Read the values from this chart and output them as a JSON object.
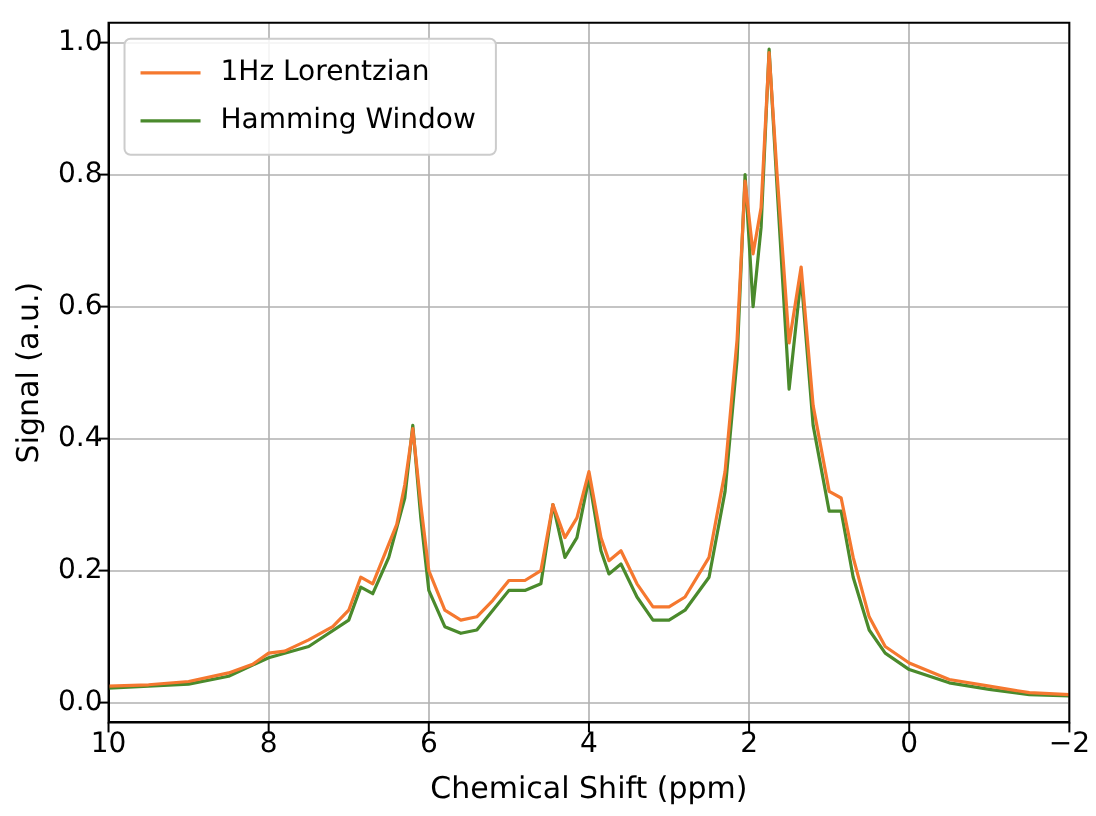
{
  "chart_data": {
    "type": "line",
    "xlabel": "Chemical Shift (ppm)",
    "ylabel": "Signal (a.u.)",
    "xlim": [
      10,
      -2
    ],
    "ylim": [
      -0.03,
      1.03
    ],
    "xticks": [
      10,
      8,
      6,
      4,
      2,
      0,
      {
        "value": -2,
        "label": "−2"
      }
    ],
    "yticks": [
      {
        "value": 0,
        "label": "0.0"
      },
      {
        "value": 0.2,
        "label": "0.2"
      },
      {
        "value": 0.4,
        "label": "0.4"
      },
      {
        "value": 0.6,
        "label": "0.6"
      },
      {
        "value": 0.8,
        "label": "0.8"
      },
      {
        "value": 1,
        "label": "1.0"
      }
    ],
    "grid": true,
    "legend": "top left",
    "marker": "none",
    "line_style": "solid",
    "series": [
      {
        "name": "1Hz Lorentzian",
        "color": "#f5782f",
        "x": [
          10,
          9.5,
          9,
          8.5,
          8.2,
          8,
          7.8,
          7.5,
          7.2,
          7,
          6.85,
          6.7,
          6.5,
          6.4,
          6.3,
          6.2,
          6.1,
          6,
          5.8,
          5.6,
          5.4,
          5.2,
          5,
          4.8,
          4.6,
          4.45,
          4.3,
          4.15,
          4,
          3.85,
          3.75,
          3.6,
          3.4,
          3.2,
          3,
          2.8,
          2.5,
          2.3,
          2.15,
          2.05,
          1.95,
          1.85,
          1.75,
          1.65,
          1.5,
          1.35,
          1.2,
          1,
          0.85,
          0.7,
          0.5,
          0.3,
          0,
          -0.5,
          -1,
          -1.5,
          -2
        ],
        "values": [
          0.025,
          0.027,
          0.032,
          0.045,
          0.058,
          0.075,
          0.078,
          0.095,
          0.115,
          0.14,
          0.19,
          0.18,
          0.24,
          0.27,
          0.33,
          0.415,
          0.3,
          0.2,
          0.14,
          0.125,
          0.13,
          0.155,
          0.185,
          0.185,
          0.2,
          0.3,
          0.25,
          0.28,
          0.35,
          0.25,
          0.215,
          0.23,
          0.18,
          0.145,
          0.145,
          0.16,
          0.22,
          0.35,
          0.55,
          0.79,
          0.68,
          0.75,
          0.985,
          0.8,
          0.545,
          0.66,
          0.45,
          0.32,
          0.31,
          0.22,
          0.13,
          0.085,
          0.06,
          0.035,
          0.025,
          0.015,
          0.012
        ]
      },
      {
        "name": "Hamming Window",
        "color": "#4a8a2c",
        "x": [
          10,
          9,
          8.5,
          8,
          7.5,
          7,
          6.85,
          6.7,
          6.5,
          6.3,
          6.2,
          6.1,
          6,
          5.8,
          5.6,
          5.4,
          5.2,
          5,
          4.8,
          4.6,
          4.45,
          4.3,
          4.15,
          4,
          3.85,
          3.75,
          3.6,
          3.4,
          3.2,
          3,
          2.8,
          2.5,
          2.3,
          2.15,
          2.05,
          1.95,
          1.85,
          1.75,
          1.65,
          1.5,
          1.35,
          1.2,
          1,
          0.85,
          0.7,
          0.5,
          0.3,
          0,
          -0.5,
          -1,
          -1.5,
          -2
        ],
        "values": [
          0.022,
          0.028,
          0.04,
          0.068,
          0.085,
          0.125,
          0.175,
          0.165,
          0.22,
          0.31,
          0.42,
          0.28,
          0.17,
          0.115,
          0.105,
          0.11,
          0.14,
          0.17,
          0.17,
          0.18,
          0.3,
          0.22,
          0.25,
          0.34,
          0.23,
          0.195,
          0.21,
          0.16,
          0.125,
          0.125,
          0.14,
          0.19,
          0.32,
          0.52,
          0.8,
          0.6,
          0.72,
          0.99,
          0.78,
          0.475,
          0.645,
          0.42,
          0.29,
          0.29,
          0.19,
          0.11,
          0.075,
          0.05,
          0.03,
          0.02,
          0.012,
          0.01
        ]
      }
    ]
  }
}
